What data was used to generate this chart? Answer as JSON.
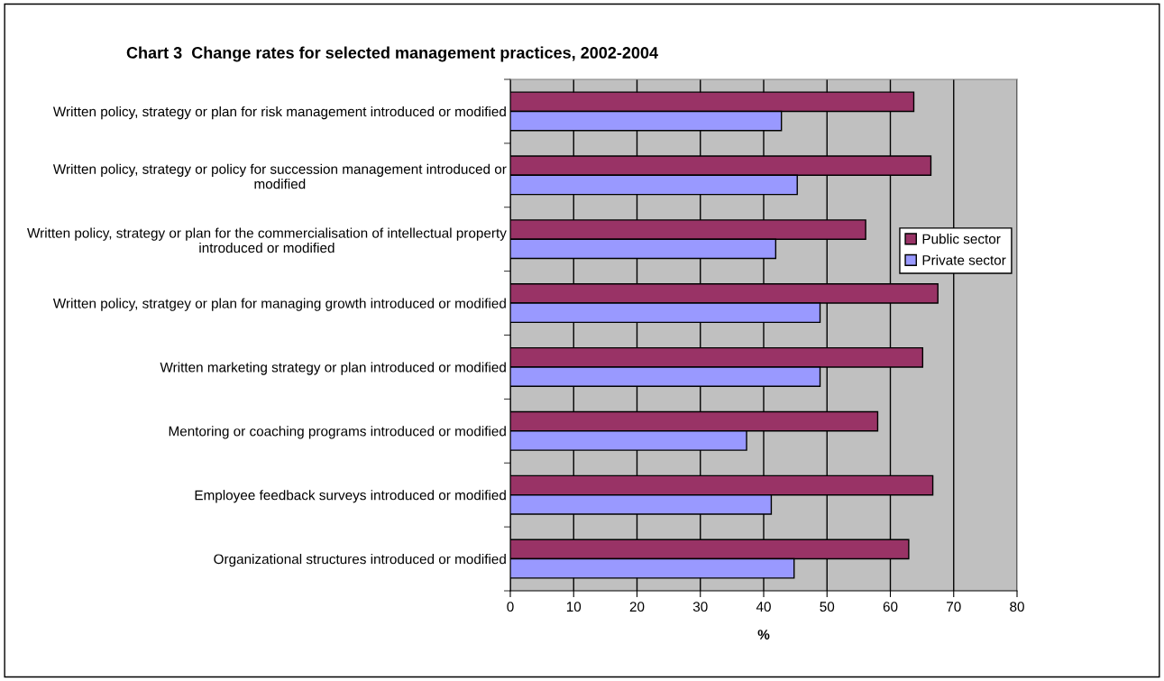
{
  "chart_data": {
    "type": "bar",
    "orientation": "horizontal",
    "title": "Chart 3  Change rates for selected management practices, 2002-2004",
    "xlabel": "%",
    "categories": [
      "Written policy, strategy or plan for risk management introduced or modified",
      "Written policy, strategy or policy for succession management introduced or modified",
      "Written policy, strategy or plan for the commercialisation of intellectual property introduced or modified",
      "Written policy, stratgey or plan for managing growth introduced or modified",
      "Written marketing strategy or plan introduced or modified",
      "Mentoring or coaching programs introduced or modified",
      "Employee feedback surveys introduced or modified",
      "Organizational structures introduced or modified"
    ],
    "series": [
      {
        "name": "Public sector",
        "color": "#993366",
        "values": [
          63.7,
          66.4,
          56.1,
          67.5,
          65.1,
          58.0,
          66.7,
          62.9
        ]
      },
      {
        "name": "Private sector",
        "color": "#9999ff",
        "values": [
          42.8,
          45.3,
          41.9,
          48.9,
          48.9,
          37.3,
          41.2,
          44.8
        ]
      }
    ],
    "xlim": [
      0,
      80
    ],
    "xticks": [
      0,
      10,
      20,
      30,
      40,
      50,
      60,
      70,
      80
    ],
    "grid": "x",
    "legend": "right"
  }
}
